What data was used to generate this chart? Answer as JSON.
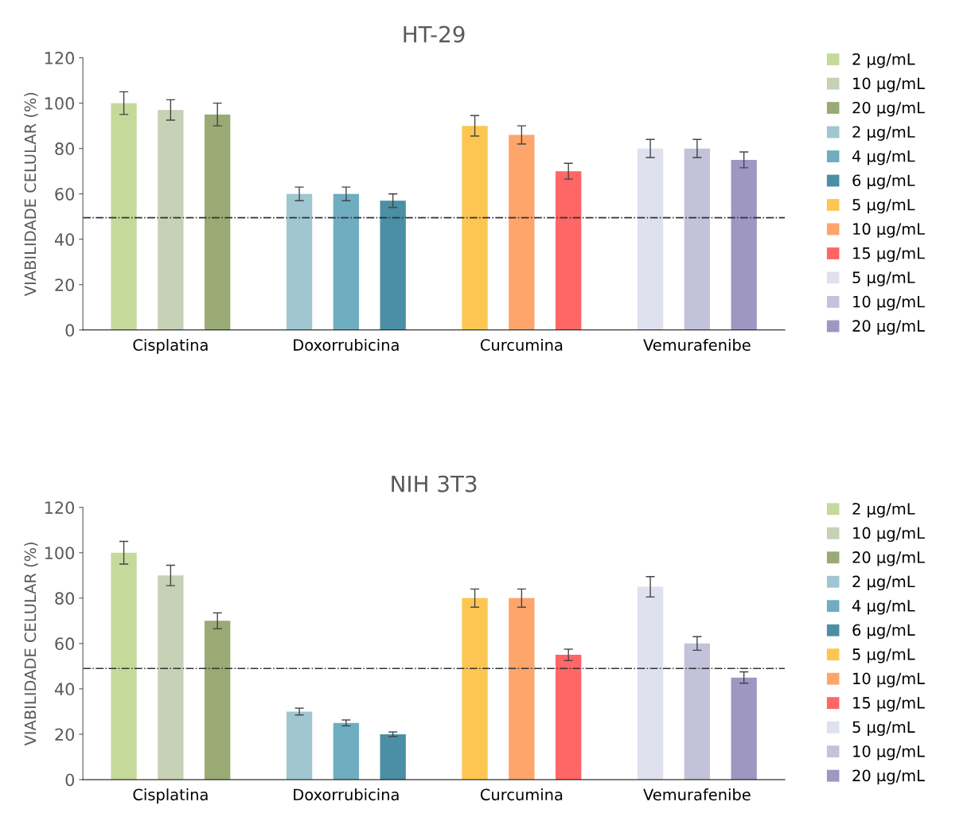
{
  "chart_data": [
    {
      "type": "bar",
      "title": "HT-29",
      "ylabel": "VIABILIDADE CELULAR (%)",
      "categories": [
        "Cisplatina",
        "Doxorrubicina",
        "Curcumina",
        "Vemurafenibe"
      ],
      "ylim": [
        0,
        120
      ],
      "yticks": [
        0,
        20,
        40,
        60,
        80,
        100,
        120
      ],
      "legend": "right",
      "grid": false,
      "ref_lines": [
        {
          "axis": "y",
          "value": 49.5,
          "color": "#333333",
          "line_style": "dashdot"
        }
      ],
      "series": [
        {
          "name": "2 μg/mL",
          "color": "#c5d99a",
          "values": [
            100,
            null,
            null,
            null
          ],
          "errors": [
            5,
            null,
            null,
            null
          ]
        },
        {
          "name": "10 μg/mL",
          "color": "#c6d1b5",
          "values": [
            97,
            null,
            null,
            null
          ],
          "errors": [
            4.5,
            null,
            null,
            null
          ]
        },
        {
          "name": "20 μg/mL",
          "color": "#9aaa74",
          "values": [
            95,
            null,
            null,
            null
          ],
          "errors": [
            5,
            null,
            null,
            null
          ]
        },
        {
          "name": "2 μg/mL",
          "color": "#9fc6d1",
          "values": [
            null,
            60,
            null,
            null
          ],
          "errors": [
            null,
            3,
            null,
            null
          ]
        },
        {
          "name": "4 μg/mL",
          "color": "#6fadc0",
          "values": [
            null,
            60,
            null,
            null
          ],
          "errors": [
            null,
            3,
            null,
            null
          ]
        },
        {
          "name": "6 μg/mL",
          "color": "#4a8fa3",
          "values": [
            null,
            57,
            null,
            null
          ],
          "errors": [
            null,
            3,
            null,
            null
          ]
        },
        {
          "name": "5 μg/mL",
          "color": "#fdc652",
          "values": [
            null,
            null,
            90,
            null
          ],
          "errors": [
            null,
            null,
            4.5,
            null
          ]
        },
        {
          "name": "10 μg/mL",
          "color": "#fda56b",
          "values": [
            null,
            null,
            86,
            null
          ],
          "errors": [
            null,
            null,
            4,
            null
          ]
        },
        {
          "name": "15 μg/mL",
          "color": "#ff6666",
          "values": [
            null,
            null,
            70,
            null
          ],
          "errors": [
            null,
            null,
            3.5,
            null
          ]
        },
        {
          "name": "5 μg/mL",
          "color": "#dfe1ef",
          "values": [
            null,
            null,
            null,
            80
          ],
          "errors": [
            null,
            null,
            null,
            4
          ]
        },
        {
          "name": "10 μg/mL",
          "color": "#c2c3da",
          "values": [
            null,
            null,
            null,
            80
          ],
          "errors": [
            null,
            null,
            null,
            4
          ]
        },
        {
          "name": "20 μg/mL",
          "color": "#9e97c2",
          "values": [
            null,
            null,
            null,
            75
          ],
          "errors": [
            null,
            null,
            null,
            3.5
          ]
        }
      ]
    },
    {
      "type": "bar",
      "title": "NIH 3T3",
      "ylabel": "VIABILIDADE CELULAR (%)",
      "categories": [
        "Cisplatina",
        "Doxorrubicina",
        "Curcumina",
        "Vemurafenibe"
      ],
      "ylim": [
        0,
        120
      ],
      "yticks": [
        0,
        20,
        40,
        60,
        80,
        100,
        120
      ],
      "legend": "right",
      "grid": false,
      "ref_lines": [
        {
          "axis": "y",
          "value": 49,
          "color": "#333333",
          "line_style": "dashdot"
        }
      ],
      "series": [
        {
          "name": "2 μg/mL",
          "color": "#c5d99a",
          "values": [
            100,
            null,
            null,
            null
          ],
          "errors": [
            5,
            null,
            null,
            null
          ]
        },
        {
          "name": "10 μg/mL",
          "color": "#c6d1b5",
          "values": [
            90,
            null,
            null,
            null
          ],
          "errors": [
            4.5,
            null,
            null,
            null
          ]
        },
        {
          "name": "20 μg/mL",
          "color": "#9aaa74",
          "values": [
            70,
            null,
            null,
            null
          ],
          "errors": [
            3.5,
            null,
            null,
            null
          ]
        },
        {
          "name": "2 μg/mL",
          "color": "#9fc6d1",
          "values": [
            null,
            30,
            null,
            null
          ],
          "errors": [
            null,
            1.5,
            null,
            null
          ]
        },
        {
          "name": "4 μg/mL",
          "color": "#6fadc0",
          "values": [
            null,
            25,
            null,
            null
          ],
          "errors": [
            null,
            1.3,
            null,
            null
          ]
        },
        {
          "name": "6 μg/mL",
          "color": "#4a8fa3",
          "values": [
            null,
            20,
            null,
            null
          ],
          "errors": [
            null,
            1,
            null,
            null
          ]
        },
        {
          "name": "5 μg/mL",
          "color": "#fdc652",
          "values": [
            null,
            null,
            80,
            null
          ],
          "errors": [
            null,
            null,
            4,
            null
          ]
        },
        {
          "name": "10 μg/mL",
          "color": "#fda56b",
          "values": [
            null,
            null,
            80,
            null
          ],
          "errors": [
            null,
            null,
            4,
            null
          ]
        },
        {
          "name": "15 μg/mL",
          "color": "#ff6666",
          "values": [
            null,
            null,
            55,
            null
          ],
          "errors": [
            null,
            null,
            2.5,
            null
          ]
        },
        {
          "name": "5 μg/mL",
          "color": "#dfe1ef",
          "values": [
            null,
            null,
            null,
            85
          ],
          "errors": [
            null,
            null,
            null,
            4.5
          ]
        },
        {
          "name": "10 μg/mL",
          "color": "#c2c3da",
          "values": [
            null,
            null,
            null,
            60
          ],
          "errors": [
            null,
            null,
            null,
            3
          ]
        },
        {
          "name": "20 μg/mL",
          "color": "#9e97c2",
          "values": [
            null,
            null,
            null,
            45
          ],
          "errors": [
            null,
            null,
            null,
            2.5
          ]
        }
      ]
    }
  ]
}
